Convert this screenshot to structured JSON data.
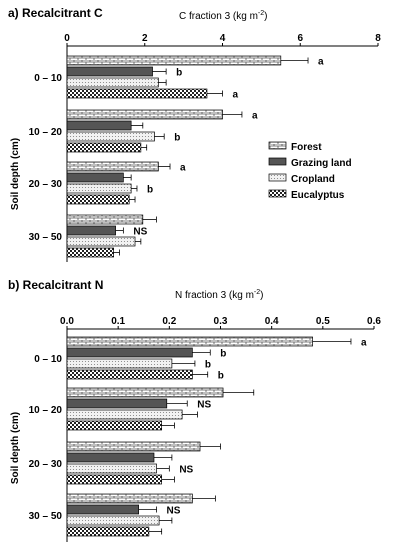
{
  "chart_data": [
    {
      "type": "bar",
      "orientation": "horizontal",
      "panel_label": "a) Recalcitrant C",
      "title_main": "C fraction 3 (kg m",
      "title_sup": "-2",
      "title_end": ")",
      "ylabel": "Soil depth (cm)",
      "xlim": [
        0,
        8
      ],
      "ticks": [
        0,
        2,
        4,
        6,
        8
      ],
      "tick_labels": [
        "0",
        "2",
        "4",
        "6",
        "8"
      ],
      "categories": [
        "0 – 10",
        "10 – 20",
        "20 – 30",
        "30 – 50"
      ],
      "legend_position": "right",
      "series": [
        {
          "name": "Forest",
          "pattern": "brick",
          "values": [
            5.5,
            4.0,
            2.35,
            1.95
          ],
          "errors": [
            0.7,
            0.5,
            0.3,
            0.35
          ]
        },
        {
          "name": "Grazing land",
          "pattern": "dark",
          "values": [
            2.2,
            1.65,
            1.45,
            1.25
          ],
          "errors": [
            0.35,
            0.3,
            0.2,
            0.2
          ]
        },
        {
          "name": "Cropland",
          "pattern": "dots",
          "values": [
            2.35,
            2.25,
            1.65,
            1.75
          ],
          "errors": [
            0.2,
            0.25,
            0.15,
            0.15
          ]
        },
        {
          "name": "Eucalyptus",
          "pattern": "check",
          "values": [
            3.6,
            1.9,
            1.6,
            1.2
          ],
          "errors": [
            0.4,
            0.15,
            0.15,
            0.15
          ]
        }
      ],
      "significance": [
        {
          "category": 0,
          "bar": 0,
          "label": "a"
        },
        {
          "category": 0,
          "bar": 1,
          "label": "b"
        },
        {
          "category": 0,
          "bar": 3,
          "label": "a"
        },
        {
          "category": 1,
          "bar": 0,
          "label": "a"
        },
        {
          "category": 1,
          "bar": 2,
          "label": "b"
        },
        {
          "category": 2,
          "bar": 0,
          "label": "a"
        },
        {
          "category": 2,
          "bar": 2,
          "label": "b"
        },
        {
          "category": 3,
          "bar": 1,
          "label": "NS"
        }
      ]
    },
    {
      "type": "bar",
      "orientation": "horizontal",
      "panel_label": "b) Recalcitrant N",
      "title_main": "N fraction 3 (kg m",
      "title_sup": "-2",
      "title_end": ")",
      "ylabel": "Soil depth (cm)",
      "xlim": [
        0,
        0.6
      ],
      "ticks": [
        0,
        0.1,
        0.2,
        0.3,
        0.4,
        0.5,
        0.6
      ],
      "tick_labels": [
        "0.0",
        "0.1",
        "0.2",
        "0.3",
        "0.4",
        "0.5",
        "0.6"
      ],
      "categories": [
        "0 – 10",
        "10 – 20",
        "20 – 30",
        "30 – 50"
      ],
      "series": [
        {
          "name": "Forest",
          "pattern": "brick",
          "values": [
            0.48,
            0.305,
            0.26,
            0.245
          ],
          "errors": [
            0.075,
            0.06,
            0.04,
            0.045
          ]
        },
        {
          "name": "Grazing land",
          "pattern": "dark",
          "values": [
            0.245,
            0.195,
            0.17,
            0.14
          ],
          "errors": [
            0.035,
            0.04,
            0.035,
            0.035
          ]
        },
        {
          "name": "Cropland",
          "pattern": "dots",
          "values": [
            0.205,
            0.225,
            0.175,
            0.18
          ],
          "errors": [
            0.045,
            0.03,
            0.025,
            0.025
          ]
        },
        {
          "name": "Eucalyptus",
          "pattern": "check",
          "values": [
            0.245,
            0.185,
            0.185,
            0.16
          ],
          "errors": [
            0.03,
            0.025,
            0.025,
            0.025
          ]
        }
      ],
      "significance": [
        {
          "category": 0,
          "bar": 0,
          "label": "a"
        },
        {
          "category": 0,
          "bar": 1,
          "label": "b"
        },
        {
          "category": 0,
          "bar": 2,
          "label": "b"
        },
        {
          "category": 0,
          "bar": 3,
          "label": "b"
        },
        {
          "category": 1,
          "bar": 1,
          "label": "NS"
        },
        {
          "category": 2,
          "bar": 2,
          "label": "NS"
        },
        {
          "category": 3,
          "bar": 1,
          "label": "NS"
        }
      ]
    }
  ]
}
